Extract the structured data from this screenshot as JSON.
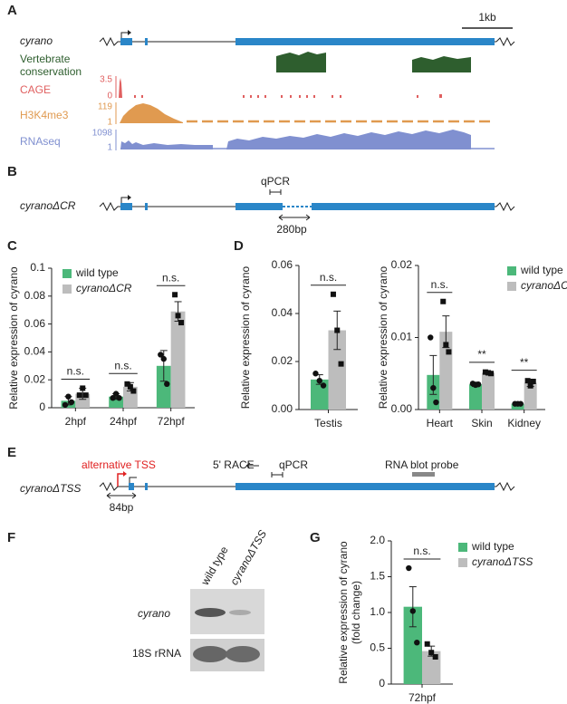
{
  "panel_labels": [
    "A",
    "B",
    "C",
    "D",
    "E",
    "F",
    "G"
  ],
  "panel_a": {
    "gene": "cyrano",
    "scale_bar": "1kb",
    "tracks": [
      {
        "name": [
          "Vertebrate",
          "conservation"
        ]
      },
      {
        "name": "CAGE",
        "max": 3.5,
        "min": 0
      },
      {
        "name": "H3K4me3",
        "max": 119,
        "min": 1
      },
      {
        "name": "RNAseq",
        "max": 1098,
        "min": 1
      }
    ]
  },
  "panel_b": {
    "gene": "cyranoΔCR",
    "qpcr": "qPCR",
    "deletion": "280bp"
  },
  "panel_e": {
    "gene": "cyranoΔTSS",
    "alt_tss": "alternative TSS",
    "race": "5' RACE",
    "qpcr": "qPCR",
    "probe": "RNA blot probe",
    "offset": "84bp"
  },
  "panel_f": {
    "lanes": [
      "wild type",
      "cyranoΔTSS"
    ],
    "rows": [
      "cyrano",
      "18S rRNA"
    ]
  },
  "chart_data": [
    {
      "type": "bar",
      "ylabel": [
        "Relative expression of cyrano"
      ],
      "categories": [
        "2hpf",
        "24hpf",
        "72hpf"
      ],
      "ylim": [
        0,
        0.1
      ],
      "yticks": [
        0,
        0.02,
        0.04,
        0.06,
        0.08,
        0.1
      ],
      "legend": "upper left",
      "significance": [
        "n.s.",
        "n.s.",
        "n.s."
      ],
      "series": [
        {
          "name": "wild type",
          "color": "#4cb87a",
          "marker": "circle",
          "values": [
            0.005,
            0.008,
            0.03
          ],
          "errors": [
            0.003,
            0.002,
            0.011
          ],
          "points": [
            [
              0.002,
              0.008,
              0.004
            ],
            [
              0.007,
              0.01,
              0.007
            ],
            [
              0.038,
              0.035,
              0.017
            ]
          ]
        },
        {
          "name": "cyranoΔCR",
          "color": "#bdbdbd",
          "marker": "square",
          "values": [
            0.01,
            0.015,
            0.069
          ],
          "errors": [
            0.004,
            0.003,
            0.007
          ],
          "points": [
            [
              0.009,
              0.014,
              0.009
            ],
            [
              0.017,
              0.015,
              0.012
            ],
            [
              0.081,
              0.066,
              0.061
            ]
          ]
        }
      ]
    },
    {
      "type": "bar",
      "ylabel": [
        "Relative expression of cyrano"
      ],
      "categories": [
        "Testis"
      ],
      "ylim": [
        0,
        0.06
      ],
      "yticks": [
        {
          "value": 0,
          "label": "0.00"
        },
        0.02,
        0.04,
        0.06
      ],
      "significance": [
        "n.s."
      ],
      "series": [
        {
          "name": "wild type",
          "color": "#4cb87a",
          "marker": "circle",
          "values": [
            0.0125
          ],
          "errors": [
            0.002
          ],
          "points": [
            [
              0.015,
              0.012,
              0.01
            ]
          ]
        },
        {
          "name": "cyranoΔCR",
          "color": "#bdbdbd",
          "marker": "square",
          "values": [
            0.033
          ],
          "errors": [
            0.008
          ],
          "points": [
            [
              0.048,
              0.033,
              0.019
            ]
          ]
        }
      ]
    },
    {
      "type": "bar",
      "ylabel": [
        "Relative expression of cyrano"
      ],
      "categories": [
        "Heart",
        "Skin",
        "Kidney"
      ],
      "ylim": [
        0,
        0.02
      ],
      "yticks": [
        {
          "value": 0,
          "label": "0.00"
        },
        0.01,
        0.02
      ],
      "legend": "upper right",
      "significance": [
        "n.s.",
        "**",
        "**"
      ],
      "series": [
        {
          "name": "wild type",
          "color": "#4cb87a",
          "marker": "circle",
          "values": [
            0.0048,
            0.0035,
            0.0008
          ],
          "errors": [
            0.0027,
            0.0003,
            0.0001
          ],
          "points": [
            [
              0.01,
              0.003,
              0.001
            ],
            [
              0.0036,
              0.0034,
              0.0035
            ],
            [
              0.0008,
              0.0008,
              0.0008
            ]
          ]
        },
        {
          "name": "cyranoΔCR",
          "color": "#bdbdbd",
          "marker": "square",
          "values": [
            0.0108,
            0.0051,
            0.0037
          ],
          "errors": [
            0.0022,
            0.0002,
            0.0005
          ],
          "points": [
            [
              0.015,
              0.009,
              0.008
            ],
            [
              0.0052,
              0.0051,
              0.005
            ],
            [
              0.004,
              0.0033,
              0.0039
            ]
          ]
        }
      ]
    },
    {
      "type": "bar",
      "ylabel": [
        "Relative expression of cyrano",
        "(fold change)"
      ],
      "categories": [
        "72hpf"
      ],
      "ylim": [
        0,
        2
      ],
      "yticks": [
        0,
        0.5,
        {
          "value": 1,
          "label": "1.0"
        },
        1.5,
        {
          "value": 2,
          "label": "2.0"
        }
      ],
      "legend": "right",
      "significance": [
        "n.s."
      ],
      "series": [
        {
          "name": "wild type",
          "color": "#4cb87a",
          "marker": "circle",
          "values": [
            1.08
          ],
          "errors": [
            0.28
          ],
          "points": [
            [
              1.62,
              1.02,
              0.58
            ]
          ]
        },
        {
          "name": "cyranoΔTSS",
          "color": "#bdbdbd",
          "marker": "square",
          "values": [
            0.46
          ],
          "errors": [
            0.07
          ],
          "points": [
            [
              0.56,
              0.44,
              0.38
            ]
          ]
        }
      ]
    }
  ]
}
